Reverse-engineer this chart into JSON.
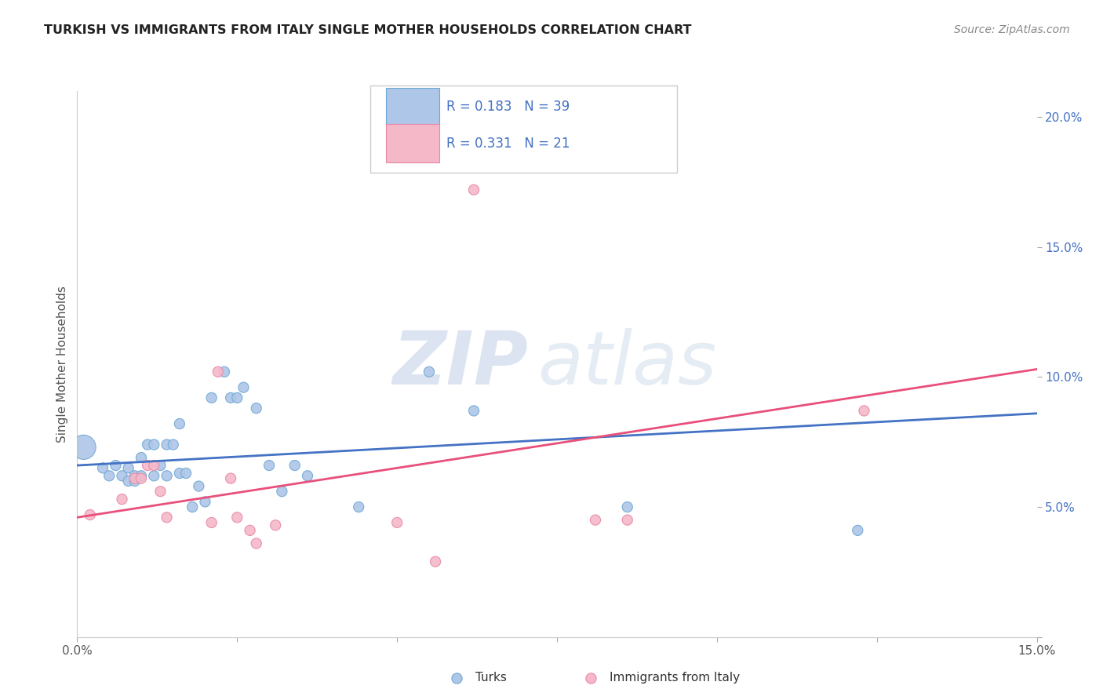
{
  "title": "TURKISH VS IMMIGRANTS FROM ITALY SINGLE MOTHER HOUSEHOLDS CORRELATION CHART",
  "source": "Source: ZipAtlas.com",
  "ylabel": "Single Mother Households",
  "xlim": [
    0.0,
    0.15
  ],
  "ylim": [
    0.0,
    0.21
  ],
  "turks_color": "#aec6e8",
  "turks_edge_color": "#6fa8d4",
  "italy_color": "#f4b8c8",
  "italy_edge_color": "#e888a8",
  "turks_line_color": "#4472c4",
  "italy_line_color": "#e8507a",
  "legend_r_turks": "R = 0.183",
  "legend_n_turks": "N = 39",
  "legend_r_italy": "R = 0.331",
  "legend_n_italy": "N = 21",
  "watermark_zip": "ZIP",
  "watermark_atlas": "atlas",
  "background_color": "#ffffff",
  "grid_color": "#dddddd",
  "turks_x": [
    0.001,
    0.004,
    0.005,
    0.006,
    0.007,
    0.008,
    0.008,
    0.009,
    0.009,
    0.01,
    0.01,
    0.011,
    0.012,
    0.012,
    0.013,
    0.014,
    0.014,
    0.015,
    0.016,
    0.016,
    0.017,
    0.018,
    0.019,
    0.02,
    0.021,
    0.023,
    0.024,
    0.025,
    0.026,
    0.028,
    0.03,
    0.032,
    0.034,
    0.036,
    0.044,
    0.055,
    0.062,
    0.086,
    0.122
  ],
  "turks_y": [
    0.073,
    0.065,
    0.062,
    0.066,
    0.062,
    0.065,
    0.06,
    0.06,
    0.062,
    0.062,
    0.069,
    0.074,
    0.074,
    0.062,
    0.066,
    0.062,
    0.074,
    0.074,
    0.082,
    0.063,
    0.063,
    0.05,
    0.058,
    0.052,
    0.092,
    0.102,
    0.092,
    0.092,
    0.096,
    0.088,
    0.066,
    0.056,
    0.066,
    0.062,
    0.05,
    0.102,
    0.087,
    0.05,
    0.041
  ],
  "turks_size": [
    500,
    90,
    90,
    90,
    90,
    90,
    90,
    90,
    90,
    90,
    90,
    90,
    90,
    90,
    90,
    90,
    90,
    90,
    90,
    90,
    90,
    90,
    90,
    90,
    90,
    90,
    90,
    90,
    90,
    90,
    90,
    90,
    90,
    90,
    90,
    90,
    90,
    90,
    90
  ],
  "italy_x": [
    0.002,
    0.007,
    0.009,
    0.01,
    0.011,
    0.012,
    0.013,
    0.014,
    0.021,
    0.022,
    0.024,
    0.025,
    0.027,
    0.028,
    0.031,
    0.05,
    0.056,
    0.062,
    0.081,
    0.086,
    0.123
  ],
  "italy_y": [
    0.047,
    0.053,
    0.061,
    0.061,
    0.066,
    0.066,
    0.056,
    0.046,
    0.044,
    0.102,
    0.061,
    0.046,
    0.041,
    0.036,
    0.043,
    0.044,
    0.029,
    0.172,
    0.045,
    0.045,
    0.087
  ],
  "italy_size": [
    90,
    90,
    90,
    90,
    90,
    90,
    90,
    90,
    90,
    90,
    90,
    90,
    90,
    90,
    90,
    90,
    90,
    90,
    90,
    90,
    90
  ],
  "turks_line_x": [
    0.0,
    0.15
  ],
  "turks_line_y": [
    0.066,
    0.086
  ],
  "italy_line_x": [
    0.0,
    0.15
  ],
  "italy_line_y": [
    0.046,
    0.103
  ]
}
